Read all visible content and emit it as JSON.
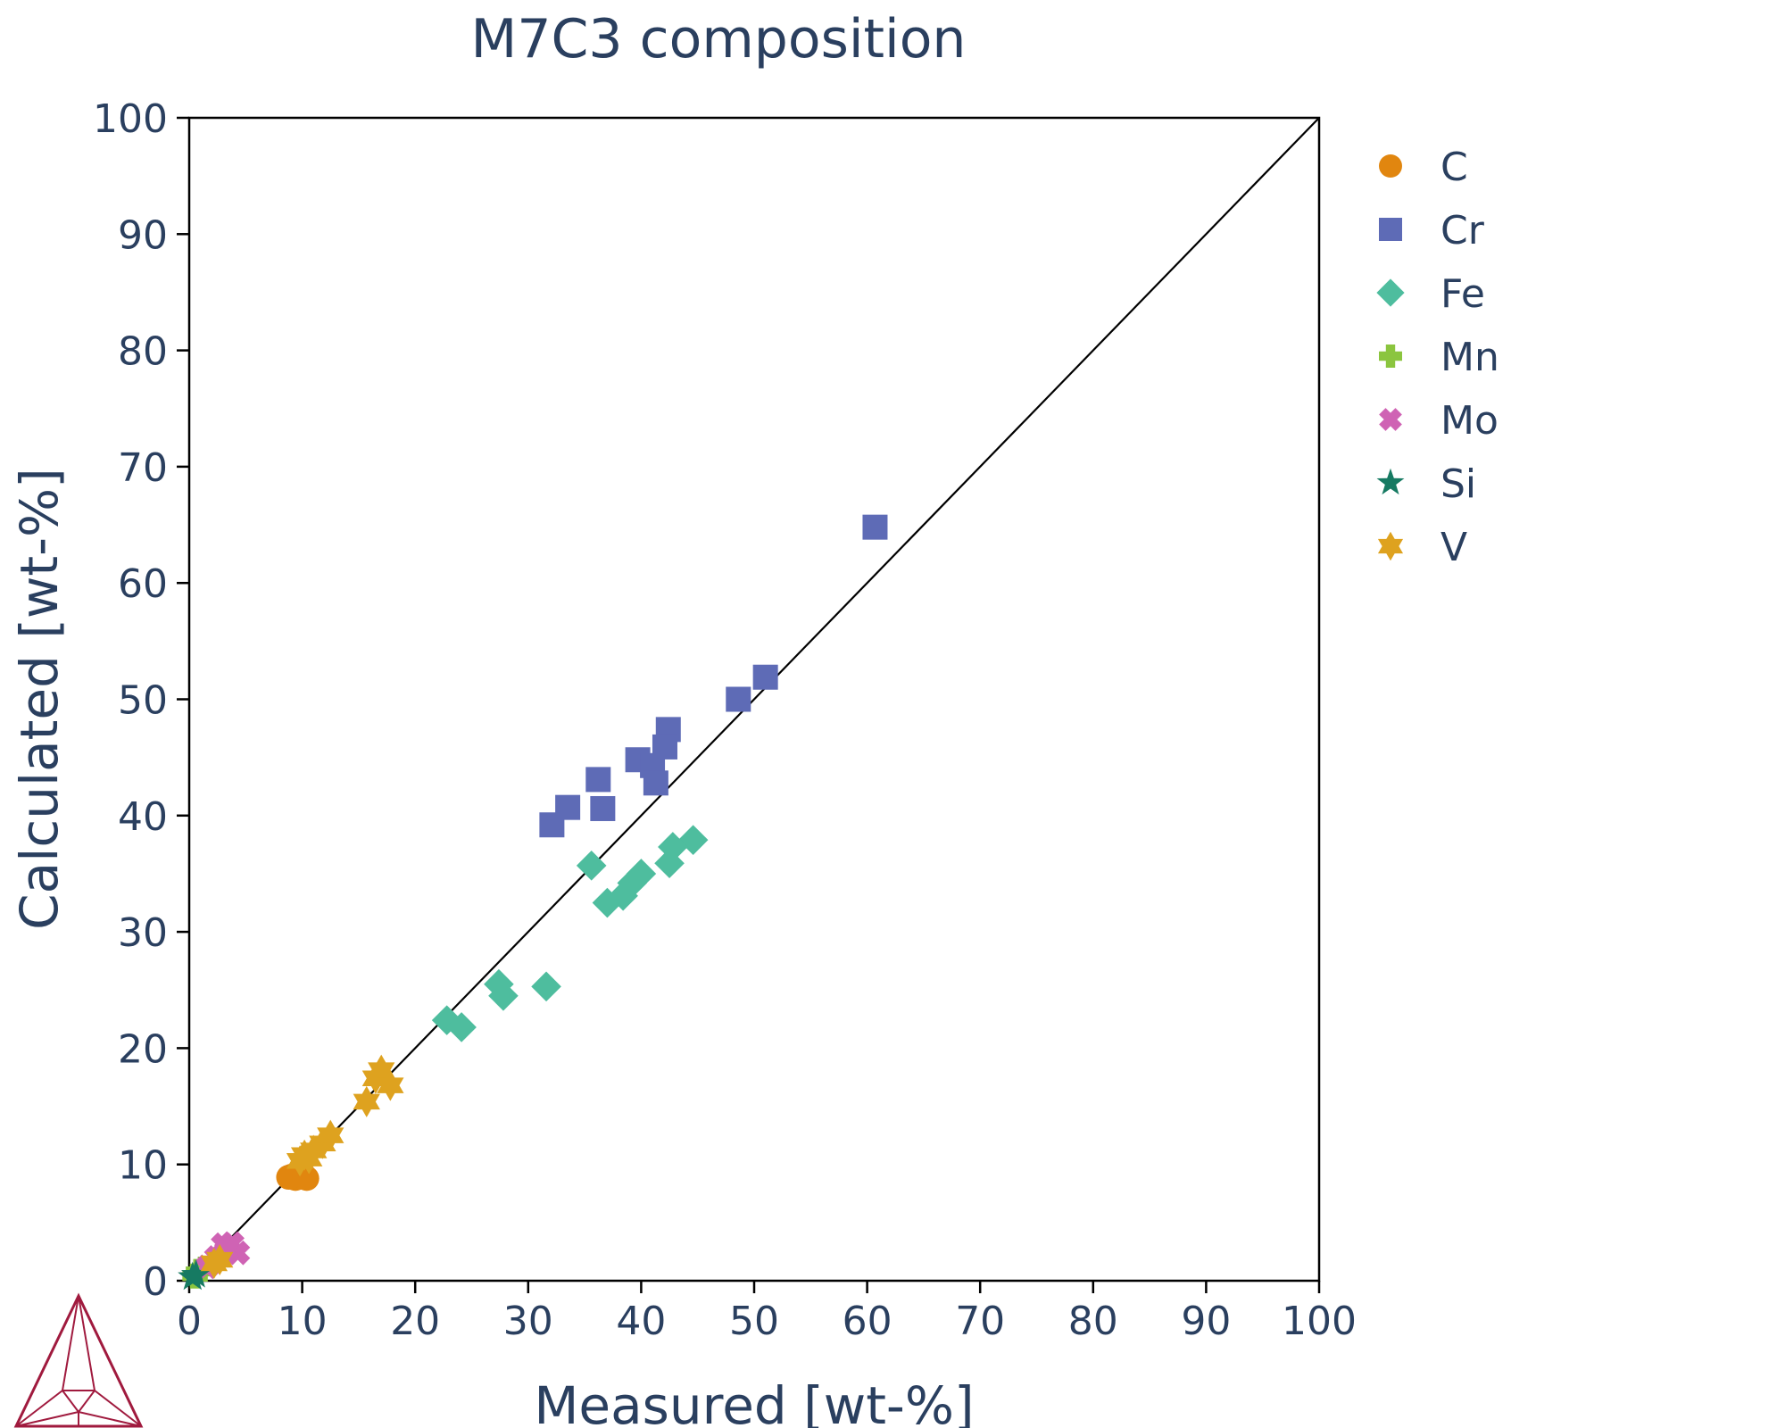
{
  "chart_data": {
    "type": "scatter",
    "title": "M7C3 composition",
    "xlabel": "Measured [wt-%]",
    "ylabel": "Calculated [wt-%]",
    "xlim": [
      0,
      100
    ],
    "ylim": [
      0,
      100
    ],
    "xticks": [
      "0",
      "10",
      "20",
      "30",
      "40",
      "50",
      "60",
      "70",
      "80",
      "90",
      "100"
    ],
    "yticks": [
      "0",
      "10",
      "20",
      "30",
      "40",
      "50",
      "60",
      "70",
      "80",
      "90",
      "100"
    ],
    "grid": false,
    "reference_line": {
      "x": [
        0,
        100
      ],
      "y": [
        0,
        100
      ]
    },
    "legend_position": "right",
    "series": [
      {
        "name": "C",
        "marker": "circle",
        "color": "#e1860f",
        "points": [
          [
            8.8,
            8.9
          ],
          [
            9.4,
            8.8
          ],
          [
            10.0,
            8.9
          ],
          [
            10.4,
            8.8
          ],
          [
            9.1,
            9.0
          ],
          [
            10.2,
            9.0
          ]
        ]
      },
      {
        "name": "Cr",
        "marker": "square",
        "color": "#5e6bb6",
        "points": [
          [
            60.7,
            64.8
          ],
          [
            51.0,
            51.9
          ],
          [
            48.6,
            50.0
          ],
          [
            42.4,
            47.4
          ],
          [
            42.1,
            45.9
          ],
          [
            39.7,
            44.8
          ],
          [
            41.0,
            44.3
          ],
          [
            41.3,
            42.8
          ],
          [
            36.2,
            43.1
          ],
          [
            33.5,
            40.7
          ],
          [
            36.6,
            40.6
          ],
          [
            32.1,
            39.2
          ]
        ]
      },
      {
        "name": "Fe",
        "marker": "diamond",
        "color": "#4ebd9e",
        "points": [
          [
            44.6,
            37.9
          ],
          [
            42.8,
            37.3
          ],
          [
            42.5,
            35.9
          ],
          [
            35.6,
            35.7
          ],
          [
            40.0,
            35.0
          ],
          [
            39.2,
            34.2
          ],
          [
            38.4,
            33.1
          ],
          [
            37.0,
            32.5
          ],
          [
            27.4,
            25.5
          ],
          [
            31.6,
            25.3
          ],
          [
            27.8,
            24.5
          ],
          [
            22.8,
            22.4
          ],
          [
            24.1,
            21.8
          ]
        ]
      },
      {
        "name": "Mn",
        "marker": "cross",
        "color": "#8bc53f",
        "points": [
          [
            0.8,
            0.8
          ],
          [
            1.2,
            1.0
          ],
          [
            0.5,
            0.4
          ]
        ]
      },
      {
        "name": "Mo",
        "marker": "x",
        "color": "#cf63b4",
        "points": [
          [
            3.0,
            3.1
          ],
          [
            3.8,
            3.2
          ],
          [
            4.3,
            2.4
          ],
          [
            2.4,
            2.0
          ],
          [
            3.3,
            2.6
          ],
          [
            1.6,
            1.2
          ]
        ]
      },
      {
        "name": "Si",
        "marker": "star",
        "color": "#167a62",
        "points": [
          [
            0.3,
            0.3
          ],
          [
            0.6,
            0.5
          ]
        ]
      },
      {
        "name": "V",
        "marker": "hexagram",
        "color": "#dea21f",
        "points": [
          [
            17.0,
            18.1
          ],
          [
            16.5,
            17.4
          ],
          [
            17.8,
            16.8
          ],
          [
            15.7,
            15.4
          ],
          [
            12.5,
            12.5
          ],
          [
            11.8,
            11.8
          ],
          [
            11.0,
            11.2
          ],
          [
            10.2,
            10.8
          ],
          [
            9.8,
            10.3
          ],
          [
            10.6,
            10.5
          ],
          [
            2.7,
            1.8
          ],
          [
            2.2,
            1.5
          ]
        ]
      }
    ]
  }
}
